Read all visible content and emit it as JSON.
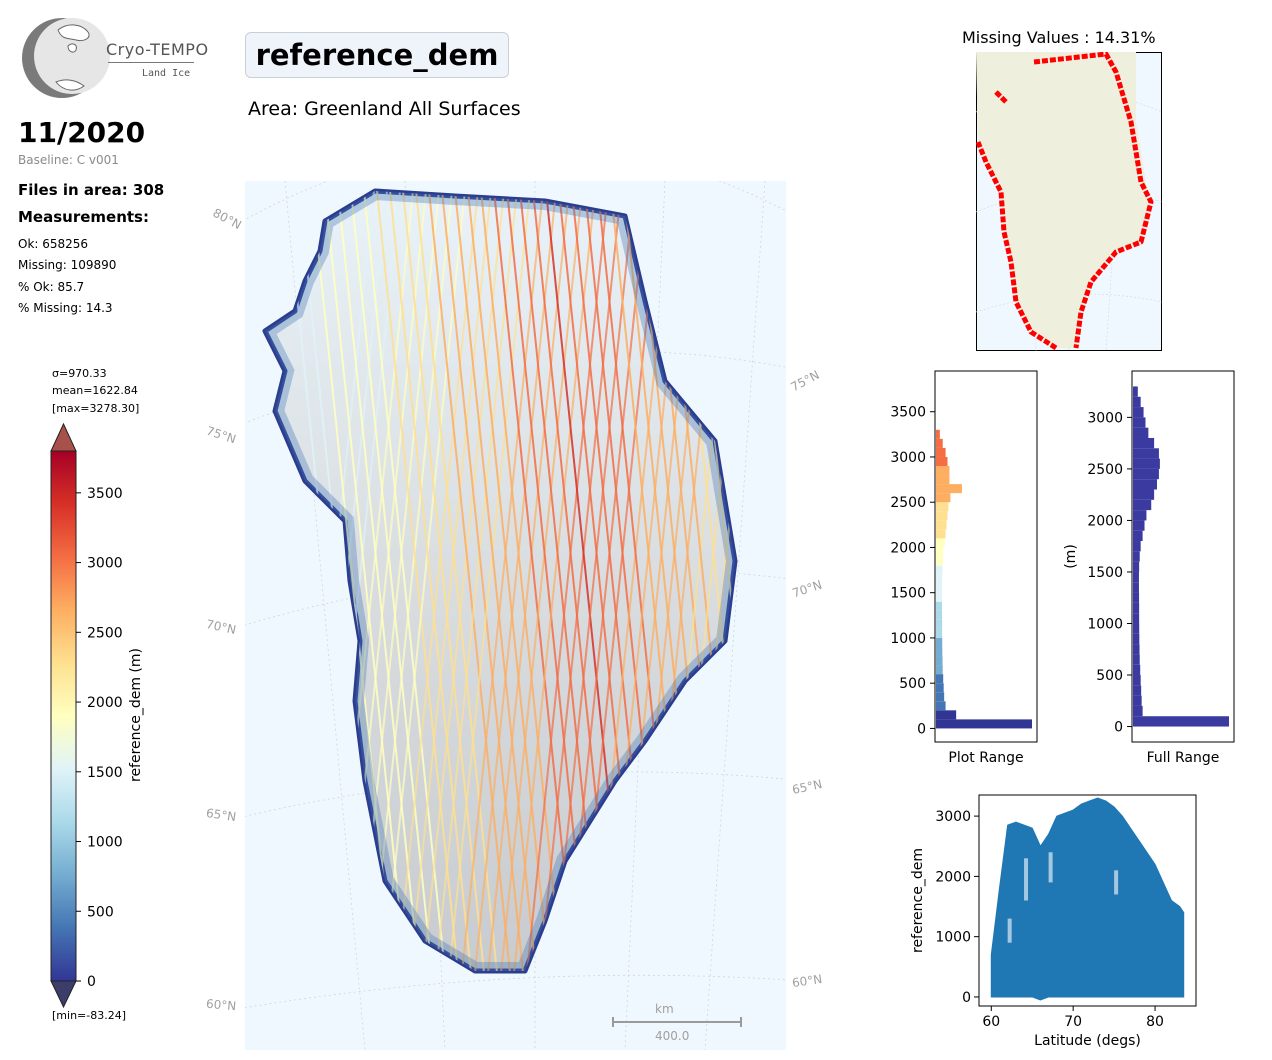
{
  "header": {
    "logo_title": "Cryo-TEMPO",
    "logo_subtitle": "Land Ice",
    "date": "11/2020",
    "baseline": "Baseline: C v001",
    "files": "Files in area: 308",
    "measurements_heading": "Measurements:",
    "stats": [
      "Ok: 658256",
      "Missing: 109890",
      "% Ok: 85.7",
      "% Missing: 14.3"
    ],
    "title": "reference_dem",
    "area": "Area: Greenland All Surfaces"
  },
  "colorbar": {
    "sigma": "σ=970.33",
    "mean": "mean=1622.84",
    "max": "[max=3278.30]",
    "min": "[min=-83.24]",
    "label": "reference_dem (m)",
    "ticks": [
      "0",
      "500",
      "1000",
      "1500",
      "2000",
      "2500",
      "3000",
      "3500"
    ],
    "range": [
      0,
      3800
    ],
    "colormap": [
      "#313695",
      "#4575b4",
      "#74add1",
      "#abd9e9",
      "#e0f3f8",
      "#ffffbf",
      "#fee090",
      "#fdae61",
      "#f46d43",
      "#d73027",
      "#a50026"
    ]
  },
  "map": {
    "lat_labels_left": [
      "80°N",
      "75°N",
      "70°N",
      "65°N",
      "60°N"
    ],
    "lat_labels_right": [
      "75°N",
      "70°N",
      "65°N",
      "60°N"
    ],
    "scale_unit": "km",
    "scale_value": "400.0",
    "ocean_color": "#f0f8ff"
  },
  "missing_panel": {
    "title": "Missing Values : 14.31%",
    "land_color": "#efefde",
    "missing_color": "#ff0000"
  },
  "chart_data": [
    {
      "type": "bar",
      "orientation": "horizontal",
      "title": "",
      "xlabel": "Plot Range",
      "ylabel": "",
      "ylim": [
        -150,
        3950
      ],
      "yticks": [
        0,
        500,
        1000,
        1500,
        2000,
        2500,
        3000,
        3500
      ],
      "bins": [
        0,
        100,
        200,
        300,
        400,
        500,
        600,
        700,
        800,
        900,
        1000,
        1100,
        1200,
        1300,
        1400,
        1500,
        1600,
        1700,
        1800,
        1900,
        2000,
        2100,
        2200,
        2300,
        2400,
        2500,
        2600,
        2700,
        2800,
        2900,
        3000,
        3100,
        3200
      ],
      "values": [
        1.0,
        0.21,
        0.1,
        0.085,
        0.08,
        0.075,
        0.07,
        0.068,
        0.066,
        0.065,
        0.064,
        0.064,
        0.063,
        0.062,
        0.062,
        0.062,
        0.064,
        0.068,
        0.072,
        0.075,
        0.09,
        0.1,
        0.11,
        0.12,
        0.13,
        0.15,
        0.27,
        0.14,
        0.14,
        0.12,
        0.1,
        0.07,
        0.04
      ]
    },
    {
      "type": "bar",
      "orientation": "horizontal",
      "title": "",
      "xlabel": "Full Range",
      "ylabel": "(m)",
      "ylim": [
        -150,
        3450
      ],
      "yticks": [
        0,
        500,
        1000,
        1500,
        2000,
        2500,
        3000
      ],
      "bins": [
        0,
        100,
        200,
        300,
        400,
        500,
        600,
        700,
        800,
        900,
        1000,
        1100,
        1200,
        1300,
        1400,
        1500,
        1600,
        1700,
        1800,
        1900,
        2000,
        2100,
        2200,
        2300,
        2400,
        2500,
        2600,
        2700,
        2800,
        2900,
        3000,
        3100,
        3200
      ],
      "values": [
        1.0,
        0.1,
        0.09,
        0.085,
        0.08,
        0.075,
        0.07,
        0.068,
        0.066,
        0.065,
        0.064,
        0.064,
        0.063,
        0.062,
        0.062,
        0.064,
        0.07,
        0.08,
        0.1,
        0.12,
        0.14,
        0.19,
        0.22,
        0.25,
        0.27,
        0.28,
        0.27,
        0.22,
        0.16,
        0.13,
        0.11,
        0.08,
        0.05
      ]
    },
    {
      "type": "scatter",
      "title": "",
      "xlabel": "Latitude (degs)",
      "ylabel": "reference_dem",
      "xlim": [
        58.5,
        85
      ],
      "ylim": [
        -150,
        3350
      ],
      "xticks": [
        60,
        70,
        80
      ],
      "yticks": [
        0,
        1000,
        2000,
        3000
      ],
      "color": "#1f77b4",
      "envelope_x": [
        60,
        61,
        62,
        63,
        64,
        65,
        66,
        67,
        68,
        69,
        70,
        71,
        72,
        73,
        74,
        75,
        76,
        77,
        78,
        79,
        80,
        81,
        82,
        83,
        83.5
      ],
      "envelope_max": [
        700,
        1800,
        2850,
        2900,
        2850,
        2800,
        2500,
        2700,
        3000,
        3050,
        3100,
        3200,
        3250,
        3300,
        3250,
        3150,
        3000,
        2800,
        2600,
        2400,
        2200,
        1900,
        1600,
        1500,
        1400
      ],
      "envelope_min": [
        0,
        0,
        0,
        0,
        0,
        0,
        -50,
        0,
        0,
        0,
        0,
        0,
        0,
        0,
        0,
        0,
        0,
        0,
        0,
        0,
        0,
        0,
        0,
        0,
        0
      ]
    }
  ]
}
